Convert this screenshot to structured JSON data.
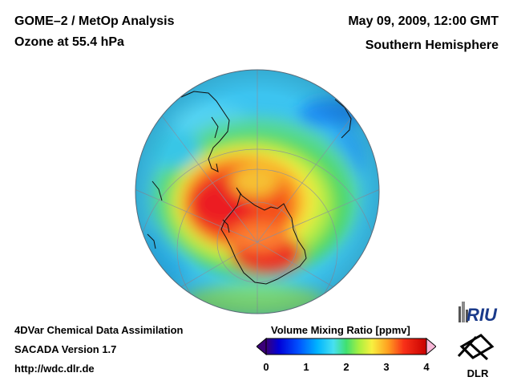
{
  "header": {
    "title_line1": "GOME–2 / MetOp Analysis",
    "title_line2": "Ozone at 55.4 hPa",
    "date": "May 09, 2009, 12:00 GMT",
    "hemisphere": "Southern Hemisphere"
  },
  "footer": {
    "line1": "4DVar Chemical Data Assimilation",
    "line2": "SACADA Version 1.7",
    "line3": "http://wdc.dlr.de"
  },
  "colorbar": {
    "title": "Volume Mixing Ratio [ppmv]",
    "ticks": [
      "0",
      "1",
      "2",
      "3",
      "4"
    ],
    "range": [
      0,
      4
    ],
    "colors": [
      "#3a0078",
      "#0000d8",
      "#0050ff",
      "#00b4ff",
      "#48e0f0",
      "#40e070",
      "#a8f040",
      "#f8f040",
      "#ffa020",
      "#f83018",
      "#c80000",
      "#f8b8d8"
    ]
  },
  "logos": {
    "riu": "RIU",
    "dlr": "DLR"
  }
}
